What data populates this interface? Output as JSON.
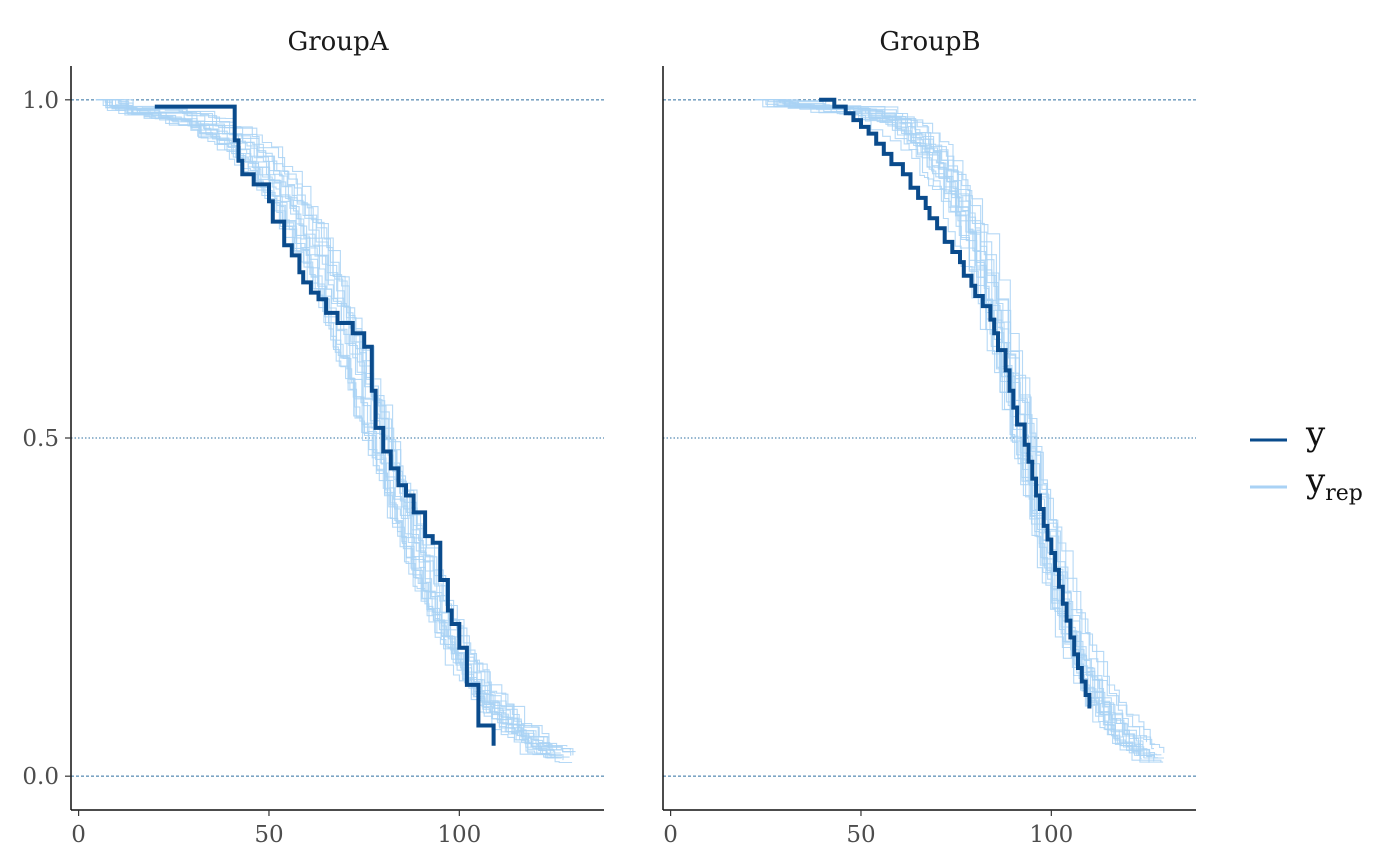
{
  "chart_data": {
    "type": "line",
    "plot_kind": "Kaplan-Meier survival curves (observed vs posterior predictive replicates)",
    "facets": [
      {
        "title": "GroupA",
        "xlim": [
          -2,
          138
        ],
        "ylim": [
          -0.05,
          1.05
        ],
        "x_ticks": [
          0,
          50,
          100
        ],
        "x_tick_labels": [
          "0",
          "50",
          "100"
        ],
        "y": {
          "name": "y",
          "x": [
            20,
            41,
            42,
            43,
            46,
            50,
            51,
            54,
            56,
            58,
            59,
            61,
            63,
            65,
            68,
            72,
            75,
            77,
            78,
            80,
            82,
            84,
            86,
            88,
            91,
            93,
            95,
            97,
            98,
            100,
            102,
            105,
            109
          ],
          "surv": [
            0.99,
            0.94,
            0.91,
            0.89,
            0.875,
            0.85,
            0.82,
            0.785,
            0.77,
            0.745,
            0.73,
            0.715,
            0.705,
            0.685,
            0.67,
            0.655,
            0.635,
            0.57,
            0.515,
            0.48,
            0.455,
            0.43,
            0.415,
            0.39,
            0.355,
            0.345,
            0.29,
            0.245,
            0.225,
            0.19,
            0.135,
            0.075,
            0.045
          ]
        },
        "y_rep_seeds": [
          101,
          202,
          303,
          404,
          505,
          606,
          707,
          808,
          909,
          1010,
          1111,
          1212,
          1313,
          1414,
          1515,
          1616,
          1717,
          1818,
          1919,
          2020
        ],
        "y_rep_shape": {
          "median": 78,
          "spread": 13,
          "start": 4,
          "end": 131,
          "tail": 0.02
        }
      },
      {
        "title": "GroupB",
        "xlim": [
          -2,
          138
        ],
        "ylim": [
          -0.05,
          1.05
        ],
        "x_ticks": [
          0,
          50,
          100
        ],
        "x_tick_labels": [
          "0",
          "50",
          "100"
        ],
        "y": {
          "name": "y",
          "x": [
            39,
            43,
            46,
            48,
            50,
            52,
            54,
            56,
            58,
            61,
            63,
            65,
            67,
            68,
            70,
            72,
            74,
            76,
            77,
            79,
            80,
            82,
            84,
            85,
            86,
            88,
            89,
            90,
            91,
            93,
            94,
            95,
            96,
            97,
            98,
            99,
            100,
            101,
            102,
            103,
            104,
            105,
            106,
            107,
            108,
            109,
            110
          ],
          "surv": [
            1.0,
            0.99,
            0.98,
            0.97,
            0.96,
            0.95,
            0.935,
            0.92,
            0.905,
            0.89,
            0.87,
            0.855,
            0.84,
            0.825,
            0.81,
            0.79,
            0.775,
            0.76,
            0.74,
            0.725,
            0.71,
            0.695,
            0.675,
            0.655,
            0.63,
            0.6,
            0.57,
            0.545,
            0.52,
            0.49,
            0.465,
            0.44,
            0.415,
            0.395,
            0.37,
            0.35,
            0.33,
            0.305,
            0.28,
            0.255,
            0.23,
            0.205,
            0.18,
            0.16,
            0.14,
            0.12,
            0.1
          ]
        },
        "y_rep_seeds": [
          31,
          62,
          93,
          124,
          155,
          186,
          217,
          248,
          279,
          310,
          341,
          372,
          403,
          434,
          465,
          496,
          527,
          558,
          589,
          620
        ],
        "y_rep_shape": {
          "median": 92,
          "spread": 10,
          "start": 22,
          "end": 131,
          "tail": 0.015
        }
      }
    ],
    "y_ticks": [
      0.0,
      0.5,
      1.0
    ],
    "y_tick_labels": [
      "0.0",
      "0.5",
      "1.0"
    ],
    "ref_lines": [
      {
        "y": 0.0,
        "style": "dashed"
      },
      {
        "y": 0.5,
        "style": "dotted"
      },
      {
        "y": 1.0,
        "style": "dashed"
      }
    ],
    "legend": {
      "position": "right",
      "entries": [
        {
          "label": "y",
          "subscript": "",
          "color": "#0a4b8c"
        },
        {
          "label": "y",
          "subscript": "rep",
          "color": "#a9d2f5"
        }
      ]
    },
    "grid": false
  },
  "colors": {
    "y": "#0a4b8c",
    "y_rep": "#a9d2f5",
    "ref_line": "#2e6fa0",
    "axis": "#111111"
  }
}
